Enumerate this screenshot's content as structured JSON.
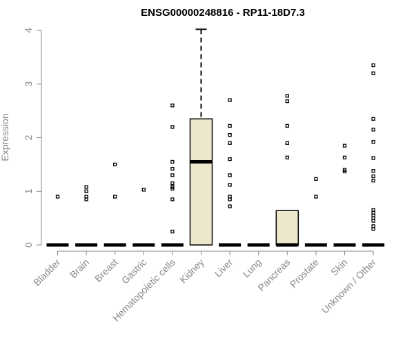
{
  "chart_data": {
    "type": "box",
    "title": "ENSG00000248816 - RP11-18D7.3",
    "xlabel": "",
    "ylabel": "Expression",
    "ylim": [
      0,
      4
    ],
    "yticks": [
      0,
      1,
      2,
      3,
      4
    ],
    "box_fill": "#ede7cd",
    "categories": [
      {
        "name": "Bladder",
        "q1": 0,
        "median": 0,
        "q3": 0,
        "whisker_low": 0,
        "whisker_high": 0,
        "outliers": [
          0.9
        ]
      },
      {
        "name": "Brain",
        "q1": 0,
        "median": 0,
        "q3": 0,
        "whisker_low": 0,
        "whisker_high": 0,
        "outliers": [
          0.85,
          0.9,
          1.0,
          1.08
        ]
      },
      {
        "name": "Breast",
        "q1": 0,
        "median": 0,
        "q3": 0,
        "whisker_low": 0,
        "whisker_high": 0,
        "outliers": [
          0.9,
          1.5
        ]
      },
      {
        "name": "Gastric",
        "q1": 0,
        "median": 0,
        "q3": 0,
        "whisker_low": 0,
        "whisker_high": 0,
        "outliers": [
          1.03
        ]
      },
      {
        "name": "Hematopoietic cells",
        "q1": 0,
        "median": 0,
        "q3": 0,
        "whisker_low": 0,
        "whisker_high": 0,
        "outliers": [
          0.25,
          0.85,
          1.05,
          1.08,
          1.15,
          1.3,
          1.42,
          1.55,
          2.2,
          2.6
        ]
      },
      {
        "name": "Kidney",
        "q1": 0,
        "median": 1.55,
        "q3": 2.35,
        "whisker_low": 0,
        "whisker_high": 4.02,
        "outliers": []
      },
      {
        "name": "Liver",
        "q1": 0,
        "median": 0,
        "q3": 0,
        "whisker_low": 0,
        "whisker_high": 0,
        "outliers": [
          0.72,
          0.85,
          0.9,
          1.12,
          1.3,
          1.6,
          1.9,
          2.05,
          2.22,
          2.7
        ]
      },
      {
        "name": "Lung",
        "q1": 0,
        "median": 0,
        "q3": 0,
        "whisker_low": 0,
        "whisker_high": 0,
        "outliers": []
      },
      {
        "name": "Pancreas",
        "q1": 0,
        "median": 0,
        "q3": 0.64,
        "whisker_low": 0,
        "whisker_high": 0.64,
        "outliers": [
          1.63,
          1.9,
          2.22,
          2.68,
          2.78
        ]
      },
      {
        "name": "Prostate",
        "q1": 0,
        "median": 0,
        "q3": 0,
        "whisker_low": 0,
        "whisker_high": 0,
        "outliers": [
          0.9,
          1.23
        ]
      },
      {
        "name": "Skin",
        "q1": 0,
        "median": 0,
        "q3": 0,
        "whisker_low": 0,
        "whisker_high": 0,
        "outliers": [
          1.37,
          1.4,
          1.63,
          1.85
        ]
      },
      {
        "name": "Unknown / Other",
        "q1": 0,
        "median": 0,
        "q3": 0,
        "whisker_low": 0,
        "whisker_high": 0,
        "outliers": [
          0.3,
          0.35,
          0.45,
          0.5,
          0.55,
          0.6,
          0.65,
          1.2,
          1.28,
          1.38,
          1.62,
          1.92,
          2.15,
          2.35,
          3.2,
          3.35
        ]
      }
    ]
  }
}
